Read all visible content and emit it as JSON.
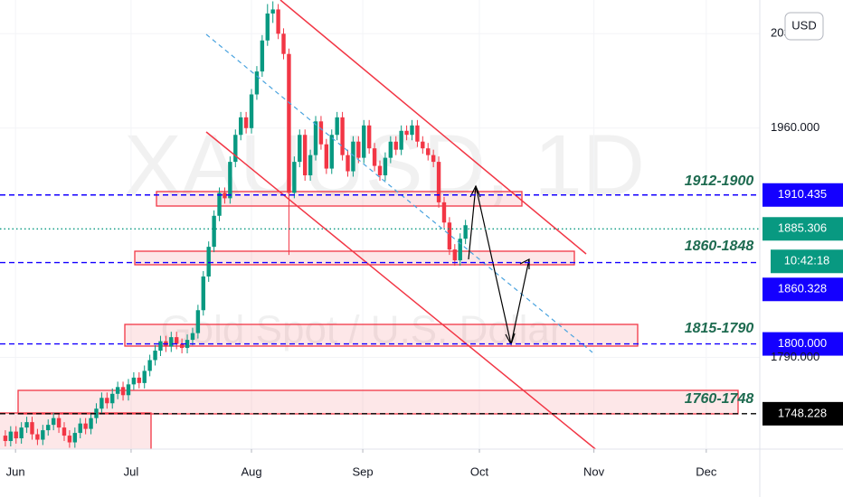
{
  "chart_data": {
    "type": "candlestick",
    "watermark": {
      "symbol": "XAUUSD, 1D",
      "description": "Gold Spot / U.S. Dollar"
    },
    "currency": "USD",
    "up_color": "#089981",
    "down_color": "#f23645",
    "open": [
      1732,
      1728,
      1735,
      1730,
      1738,
      1742,
      1733,
      1729,
      1736,
      1740,
      1745,
      1738,
      1732,
      1727,
      1734,
      1741,
      1737,
      1745,
      1752,
      1760,
      1756,
      1763,
      1768,
      1762,
      1770,
      1775,
      1771,
      1780,
      1788,
      1795,
      1802,
      1798,
      1805,
      1800,
      1797,
      1803,
      1808,
      1825,
      1850,
      1872,
      1895,
      1912,
      1908,
      1935,
      1955,
      1968,
      1960,
      1985,
      2002,
      2025,
      2045,
      2048,
      2030,
      2015,
      1912,
      1935,
      1955,
      1925,
      1940,
      1965,
      1948,
      1930,
      1955,
      1968,
      1940,
      1928,
      1950,
      1938,
      1962,
      1945,
      1932,
      1925,
      1938,
      1950,
      1944,
      1958,
      1955,
      1962,
      1950,
      1945,
      1940,
      1935,
      1905,
      1890,
      1870,
      1862,
      1878
    ],
    "high": [
      1736,
      1739,
      1739,
      1742,
      1746,
      1746,
      1737,
      1740,
      1744,
      1749,
      1749,
      1742,
      1736,
      1738,
      1745,
      1745,
      1749,
      1756,
      1764,
      1764,
      1767,
      1772,
      1772,
      1774,
      1779,
      1779,
      1784,
      1792,
      1799,
      1806,
      1806,
      1809,
      1809,
      1804,
      1807,
      1812,
      1829,
      1854,
      1876,
      1899,
      1916,
      1916,
      1939,
      1959,
      1972,
      1972,
      1989,
      2006,
      2029,
      2052,
      2054,
      2052,
      2034,
      2019,
      1939,
      1959,
      1959,
      1944,
      1969,
      1969,
      1952,
      1959,
      1972,
      1972,
      1944,
      1954,
      1954,
      1966,
      1966,
      1949,
      1936,
      1942,
      1954,
      1954,
      1962,
      1962,
      1966,
      1966,
      1954,
      1949,
      1944,
      1939,
      1909,
      1894,
      1874,
      1882,
      1892
    ],
    "low": [
      1724,
      1724,
      1726,
      1726,
      1734,
      1729,
      1725,
      1725,
      1732,
      1736,
      1734,
      1728,
      1723,
      1723,
      1730,
      1733,
      1733,
      1741,
      1748,
      1752,
      1752,
      1759,
      1758,
      1758,
      1766,
      1767,
      1767,
      1776,
      1784,
      1791,
      1794,
      1794,
      1796,
      1793,
      1793,
      1799,
      1804,
      1821,
      1846,
      1868,
      1891,
      1904,
      1904,
      1931,
      1951,
      1956,
      1956,
      1981,
      1998,
      2021,
      2038,
      2026,
      2011,
      1866,
      1908,
      1931,
      1921,
      1921,
      1936,
      1944,
      1926,
      1926,
      1951,
      1936,
      1924,
      1924,
      1934,
      1934,
      1941,
      1928,
      1921,
      1921,
      1934,
      1940,
      1940,
      1951,
      1951,
      1946,
      1941,
      1936,
      1931,
      1901,
      1886,
      1866,
      1858,
      1858,
      1874
    ],
    "close": [
      1728,
      1735,
      1730,
      1738,
      1742,
      1733,
      1729,
      1736,
      1740,
      1745,
      1738,
      1732,
      1727,
      1734,
      1741,
      1737,
      1745,
      1752,
      1760,
      1756,
      1763,
      1768,
      1762,
      1770,
      1775,
      1771,
      1780,
      1788,
      1795,
      1802,
      1798,
      1805,
      1800,
      1797,
      1803,
      1808,
      1825,
      1850,
      1872,
      1895,
      1912,
      1908,
      1935,
      1955,
      1968,
      1960,
      1985,
      2002,
      2025,
      2045,
      2048,
      2030,
      2015,
      1912,
      1935,
      1955,
      1925,
      1940,
      1965,
      1948,
      1930,
      1955,
      1968,
      1940,
      1928,
      1950,
      1938,
      1962,
      1945,
      1932,
      1925,
      1938,
      1950,
      1944,
      1958,
      1955,
      1962,
      1950,
      1945,
      1940,
      1935,
      1905,
      1890,
      1870,
      1862,
      1878,
      1888
    ],
    "xlim": [
      -1,
      141
    ],
    "xticks": [
      {
        "value": 1.9,
        "label": "Jun"
      },
      {
        "value": 23.5,
        "label": "Jul"
      },
      {
        "value": 46,
        "label": "Aug"
      },
      {
        "value": 66.8,
        "label": "Sep"
      },
      {
        "value": 88.6,
        "label": "Oct"
      },
      {
        "value": 110,
        "label": "Nov"
      },
      {
        "value": 131,
        "label": "Dec"
      }
    ],
    "ylim": [
      1722,
      2055
    ],
    "yticks": [
      {
        "value": 2030,
        "label": "2030.000"
      },
      {
        "value": 1960,
        "label": "1960.000"
      },
      {
        "value": 1790,
        "label": "1790.000"
      }
    ],
    "price_lines": [
      {
        "value": 1910.435,
        "label": "1910.435",
        "color": "#1400ff",
        "style": "dashed"
      },
      {
        "value": 1885.306,
        "label": "1885.306",
        "color": "#089981",
        "style": "dotted",
        "countdown": "10:42:18"
      },
      {
        "value": 1860.328,
        "label": "1860.328",
        "color": "#1400ff",
        "style": "dashed"
      },
      {
        "value": 1800,
        "label": "1800.000",
        "color": "#1400ff",
        "style": "dashed"
      },
      {
        "value": 1748.228,
        "label": "1748.228",
        "color": "#000000",
        "style": "dashed"
      }
    ],
    "zones": [
      {
        "label": "1912-1900"
      },
      {
        "label": "1860-1848"
      },
      {
        "label": "1815-1790"
      },
      {
        "label": "1760-1748"
      }
    ]
  }
}
